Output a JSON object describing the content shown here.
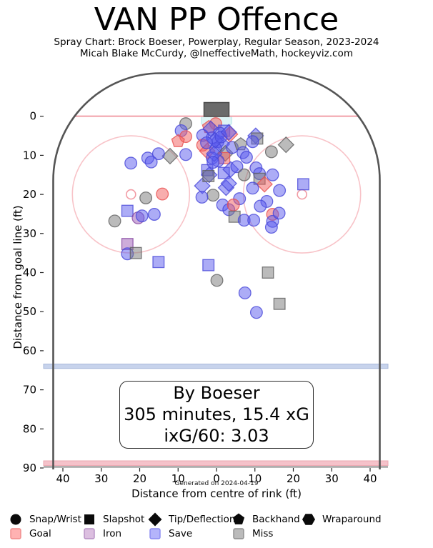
{
  "title": "VAN PP Offence",
  "subtitle": "Spray Chart: Brock Boeser, Powerplay, Regular Season, 2023-2024",
  "credit": "Micah Blake McCurdy, @IneffectiveMath, hockeyviz.com",
  "info_box": {
    "line1": "By Boeser",
    "line2": "305 minutes, 15.4 xG",
    "line3": "ixG/60: 3.03"
  },
  "footer_note": "Generated on 2024-04-19",
  "axes": {
    "x_label": "Distance from centre of rink (ft)",
    "y_label": "Distance from goal line (ft)",
    "x_ticks": [
      {
        "v": -40,
        "label": "40"
      },
      {
        "v": -30,
        "label": "30"
      },
      {
        "v": -20,
        "label": "20"
      },
      {
        "v": -10,
        "label": "10"
      },
      {
        "v": 0,
        "label": "0"
      },
      {
        "v": 10,
        "label": "10"
      },
      {
        "v": 20,
        "label": "20"
      },
      {
        "v": 30,
        "label": "30"
      },
      {
        "v": 40,
        "label": "40"
      }
    ],
    "y_ticks": [
      {
        "v": 0,
        "label": "0"
      },
      {
        "v": 10,
        "label": "10"
      },
      {
        "v": 20,
        "label": "20"
      },
      {
        "v": 30,
        "label": "30"
      },
      {
        "v": 40,
        "label": "40"
      },
      {
        "v": 50,
        "label": "50"
      },
      {
        "v": 60,
        "label": "60"
      },
      {
        "v": 70,
        "label": "70"
      },
      {
        "v": 80,
        "label": "80"
      },
      {
        "v": 90,
        "label": "90"
      }
    ]
  },
  "legend": {
    "shapes": [
      {
        "shape": "circle",
        "label": "Snap/Wrist"
      },
      {
        "shape": "square",
        "label": "Slapshot"
      },
      {
        "shape": "diamond",
        "label": "Tip/Deflection"
      },
      {
        "shape": "pentagon",
        "label": "Backhand"
      },
      {
        "shape": "hexagon",
        "label": "Wraparound"
      }
    ],
    "results": [
      {
        "key": "goal",
        "label": "Goal",
        "fill": "#ffb2b2",
        "border": "#f08a8a"
      },
      {
        "key": "iron",
        "label": "Iron",
        "fill": "#dcbfe0",
        "border": "#b68fc4"
      },
      {
        "key": "save",
        "label": "Save",
        "fill": "#b4b4fb",
        "border": "#8a8af2"
      },
      {
        "key": "miss",
        "label": "Miss",
        "fill": "#bbbbbb",
        "border": "#8d8d8d"
      }
    ]
  },
  "chart_data": {
    "type": "scatter",
    "title": "VAN PP Offence",
    "xlabel": "Distance from centre of rink (ft)",
    "ylabel": "Distance from goal line (ft)",
    "xlim": [
      -45,
      45
    ],
    "ylim": [
      90,
      -11
    ],
    "legend_position": "bottom",
    "grid": false,
    "marker_colors": {
      "goal": {
        "fill": "#f25c5c",
        "stroke": "#e84f4f"
      },
      "iron": {
        "fill": "#9b59b6",
        "stroke": "#8445a0"
      },
      "save": {
        "fill": "#5a5aee",
        "stroke": "#4646d8"
      },
      "miss": {
        "fill": "#787878",
        "stroke": "#5f5f5f"
      }
    },
    "rink_colors": {
      "boards": "#555555",
      "goal_line": "#f2a5ad",
      "faceoff": "#f8c3c8",
      "faceoff_dot": "#f29ba4",
      "blue_line_fill": "#c7d3ec",
      "blue_line_edge": "#aab9da",
      "center_line_fill": "#f5c2ca",
      "center_line_edge": "#eba8b2",
      "crease": "#ddf4f5",
      "crease_edge": "#bfe9ea",
      "net": "#6b6b6b"
    },
    "shots": [
      [
        -8,
        1.9,
        "circle",
        "miss"
      ],
      [
        -9.2,
        3.7,
        "circle",
        "save"
      ],
      [
        -8,
        5.2,
        "circle",
        "goal"
      ],
      [
        -10,
        6.4,
        "pentagon",
        "goal"
      ],
      [
        -12.1,
        10.2,
        "diamond",
        "miss"
      ],
      [
        -8,
        9.8,
        "circle",
        "save"
      ],
      [
        -15.1,
        9.6,
        "circle",
        "save"
      ],
      [
        -17.9,
        10.7,
        "circle",
        "save"
      ],
      [
        -17,
        11.7,
        "circle",
        "save"
      ],
      [
        -22.3,
        12,
        "circle",
        "save"
      ],
      [
        -18.4,
        20.9,
        "circle",
        "miss"
      ],
      [
        -14.1,
        19.9,
        "circle",
        "goal"
      ],
      [
        -23.2,
        24.2,
        "square",
        "save"
      ],
      [
        -26.5,
        26.8,
        "circle",
        "miss"
      ],
      [
        -20.4,
        26,
        "circle",
        "iron"
      ],
      [
        -19.4,
        25.5,
        "circle",
        "save"
      ],
      [
        -16.2,
        25.1,
        "circle",
        "save"
      ],
      [
        -23.2,
        32.7,
        "square",
        "iron"
      ],
      [
        -23.2,
        35.2,
        "circle",
        "save"
      ],
      [
        -21,
        35,
        "square",
        "miss"
      ],
      [
        -15.1,
        37.3,
        "square",
        "save"
      ],
      [
        -0.2,
        1.9,
        "circle",
        "goal"
      ],
      [
        -2,
        2.8,
        "pentagon",
        "goal"
      ],
      [
        -3.6,
        4.9,
        "circle",
        "save"
      ],
      [
        2,
        3.7,
        "square",
        "save"
      ],
      [
        3.5,
        4.6,
        "diamond",
        "goal"
      ],
      [
        -1.1,
        5.5,
        "circle",
        "save"
      ],
      [
        0.4,
        6.5,
        "circle",
        "save"
      ],
      [
        1.4,
        7.1,
        "diamond",
        "save"
      ],
      [
        -3.6,
        7.4,
        "circle",
        "goal"
      ],
      [
        -2.4,
        8.9,
        "diamond",
        "goal"
      ],
      [
        -0.2,
        8.3,
        "circle",
        "save"
      ],
      [
        2.3,
        9.5,
        "diamond",
        "miss"
      ],
      [
        2,
        10.7,
        "square",
        "goal"
      ],
      [
        -1.1,
        10.7,
        "circle",
        "save"
      ],
      [
        4.1,
        8,
        "circle",
        "save"
      ],
      [
        -2.4,
        13.8,
        "square",
        "save"
      ],
      [
        1.9,
        14.5,
        "square",
        "save"
      ],
      [
        3.7,
        13.6,
        "diamond",
        "save"
      ],
      [
        0.4,
        11.4,
        "circle",
        "save"
      ],
      [
        -1.5,
        3.2,
        "diamond",
        "save"
      ],
      [
        0.8,
        4.3,
        "circle",
        "save"
      ],
      [
        -0.4,
        6.2,
        "diamond",
        "save"
      ],
      [
        1.2,
        5.3,
        "circle",
        "save"
      ],
      [
        -2.6,
        6.8,
        "circle",
        "save"
      ],
      [
        -0.6,
        9.6,
        "diamond",
        "save"
      ],
      [
        -0.9,
        11.8,
        "circle",
        "save"
      ],
      [
        3.2,
        4.1,
        "diamond",
        "save"
      ],
      [
        2.5,
        18.3,
        "diamond",
        "save"
      ],
      [
        -1.9,
        15,
        "diamond",
        "save"
      ],
      [
        3.2,
        17.2,
        "diamond",
        "save"
      ],
      [
        -3.7,
        17.8,
        "diamond",
        "save"
      ],
      [
        -2.1,
        15.3,
        "square",
        "miss"
      ],
      [
        -0.9,
        20.2,
        "circle",
        "miss"
      ],
      [
        -3.8,
        20.7,
        "circle",
        "save"
      ],
      [
        1.6,
        22.7,
        "circle",
        "save"
      ],
      [
        3.2,
        23.9,
        "circle",
        "save"
      ],
      [
        10.2,
        5,
        "diamond",
        "save"
      ],
      [
        10.6,
        5.7,
        "square",
        "miss"
      ],
      [
        18.1,
        7.3,
        "diamond",
        "miss"
      ],
      [
        14.3,
        9.1,
        "circle",
        "miss"
      ],
      [
        6.3,
        7.2,
        "pentagon",
        "miss"
      ],
      [
        9.4,
        6.5,
        "circle",
        "save"
      ],
      [
        6.9,
        9.3,
        "circle",
        "save"
      ],
      [
        7.8,
        10.5,
        "circle",
        "save"
      ],
      [
        5.3,
        12.9,
        "circle",
        "save"
      ],
      [
        7.2,
        15,
        "circle",
        "miss"
      ],
      [
        10.3,
        13.2,
        "circle",
        "save"
      ],
      [
        11.2,
        14.7,
        "circle",
        "save"
      ],
      [
        14.6,
        15,
        "circle",
        "save"
      ],
      [
        11.2,
        16,
        "square",
        "miss"
      ],
      [
        12.5,
        17.4,
        "diamond",
        "goal"
      ],
      [
        22.6,
        17.4,
        "square",
        "save"
      ],
      [
        9.4,
        18.4,
        "circle",
        "save"
      ],
      [
        16.4,
        19,
        "circle",
        "save"
      ],
      [
        6,
        21.1,
        "circle",
        "save"
      ],
      [
        13.1,
        21.8,
        "circle",
        "save"
      ],
      [
        11.4,
        23,
        "circle",
        "save"
      ],
      [
        4.4,
        22.7,
        "circle",
        "goal"
      ],
      [
        4.7,
        25.7,
        "square",
        "miss"
      ],
      [
        7.2,
        26.6,
        "circle",
        "save"
      ],
      [
        14.6,
        25.1,
        "circle",
        "goal"
      ],
      [
        14.6,
        26.9,
        "circle",
        "save"
      ],
      [
        9.7,
        26.6,
        "circle",
        "save"
      ],
      [
        16.3,
        24.8,
        "circle",
        "save"
      ],
      [
        14.3,
        28.4,
        "circle",
        "save"
      ],
      [
        -2.1,
        38.1,
        "square",
        "save"
      ],
      [
        0.1,
        42,
        "circle",
        "miss"
      ],
      [
        13.4,
        40,
        "square",
        "miss"
      ],
      [
        7.4,
        45.2,
        "circle",
        "save"
      ],
      [
        10.4,
        50.2,
        "circle",
        "save"
      ],
      [
        16.4,
        48,
        "square",
        "miss"
      ]
    ]
  }
}
